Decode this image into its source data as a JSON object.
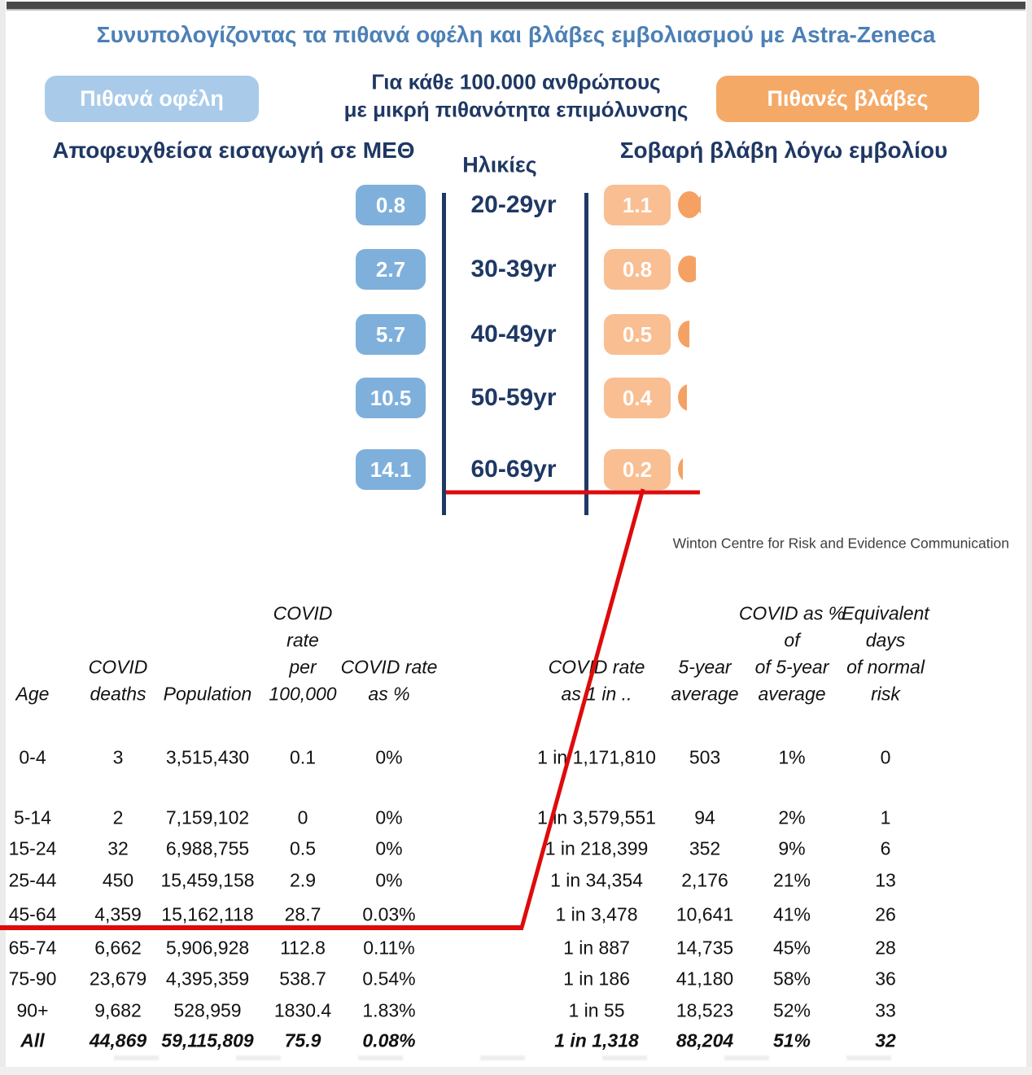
{
  "page": {
    "title": "Συνυπολογίζοντας τα πιθανά οφέλη και βλάβες εμβολιασμού με Astra-Zeneca"
  },
  "legend": {
    "benefits_label": "Πιθανά οφέλη",
    "population_note_line1": "Για κάθε 100.000 ανθρώπους",
    "population_note_line2": "με μικρή πιθανότητα επιμόλυνσης",
    "harms_label": "Πιθανές βλάβες"
  },
  "pictograph": {
    "benefit_title": "Αποφευχθείσα εισαγωγή σε ΜΕΘ",
    "axis_title": "Ηλικίες",
    "harm_title": "Σοβαρή βλάβη λόγω εμβολίου"
  },
  "attribution": "Winton Centre for Risk and Evidence Communication",
  "colors": {
    "title_blue": "#4c80b6",
    "navy": "#1f3864",
    "benefits_pill": "#a9cbe9",
    "harms_pill": "#f5a966",
    "benefit_box": "#7fb0dc",
    "benefit_dot": "#9cc2e5",
    "harm_box": "#f9be92",
    "harm_dot": "#f5a164",
    "annotation_red": "#de0b0b"
  },
  "chart_data": [
    {
      "type": "pictogram",
      "title": "Συνυπολογίζοντας τα πιθανά οφέλη και βλάβες εμβολιασμού με Astra-Zeneca",
      "unit": "ανά 100.000 ανθρώπους με μικρή πιθανότητα επιμόλυνσης",
      "categories": [
        "20-29yr",
        "30-39yr",
        "40-49yr",
        "50-59yr",
        "60-69yr"
      ],
      "series": [
        {
          "name": "Αποφευχθείσα εισαγωγή σε ΜΕΘ",
          "side": "left",
          "color": "#9cc2e5",
          "values": [
            0.8,
            2.7,
            5.7,
            10.5,
            14.1
          ]
        },
        {
          "name": "Σοβαρή βλάβη λόγω εμβολίου",
          "side": "right",
          "color": "#f5a164",
          "values": [
            1.1,
            0.8,
            0.5,
            0.4,
            0.2
          ]
        }
      ]
    },
    {
      "type": "table",
      "header_lines": [
        [
          "Age"
        ],
        [
          "COVID",
          "deaths"
        ],
        [
          "Population"
        ],
        [
          "COVID",
          "rate",
          "per",
          "100,000"
        ],
        [
          "COVID rate",
          "as %"
        ],
        [
          "COVID rate",
          "as 1 in .."
        ],
        [
          "5-year",
          "average"
        ],
        [
          "COVID as %",
          "of",
          "of 5-year",
          "average"
        ],
        [
          "Equivalent",
          "days",
          "of normal",
          "risk"
        ]
      ],
      "rows": [
        [
          "0-4",
          "3",
          "3,515,430",
          "0.1",
          "0%",
          "1 in 1,171,810",
          "503",
          "1%",
          "0"
        ],
        [
          "5-14",
          "2",
          "7,159,102",
          "0",
          "0%",
          "1 in 3,579,551",
          "94",
          "2%",
          "1"
        ],
        [
          "15-24",
          "32",
          "6,988,755",
          "0.5",
          "0%",
          "1 in 218,399",
          "352",
          "9%",
          "6"
        ],
        [
          "25-44",
          "450",
          "15,459,158",
          "2.9",
          "0%",
          "1 in 34,354",
          "2,176",
          "21%",
          "13"
        ],
        [
          "45-64",
          "4,359",
          "15,162,118",
          "28.7",
          "0.03%",
          "1 in 3,478",
          "10,641",
          "41%",
          "26"
        ],
        [
          "65-74",
          "6,662",
          "5,906,928",
          "112.8",
          "0.11%",
          "1 in 887",
          "14,735",
          "45%",
          "28"
        ],
        [
          "75-90",
          "23,679",
          "4,395,359",
          "538.7",
          "0.54%",
          "1 in 186",
          "41,180",
          "58%",
          "36"
        ],
        [
          "90+",
          "9,682",
          "528,959",
          "1830.4",
          "1.83%",
          "1 in 55",
          "18,523",
          "52%",
          "33"
        ],
        [
          "All",
          "44,869",
          "59,115,809",
          "75.9",
          "0.08%",
          "1 in 1,318",
          "88,204",
          "51%",
          "32"
        ]
      ]
    }
  ]
}
